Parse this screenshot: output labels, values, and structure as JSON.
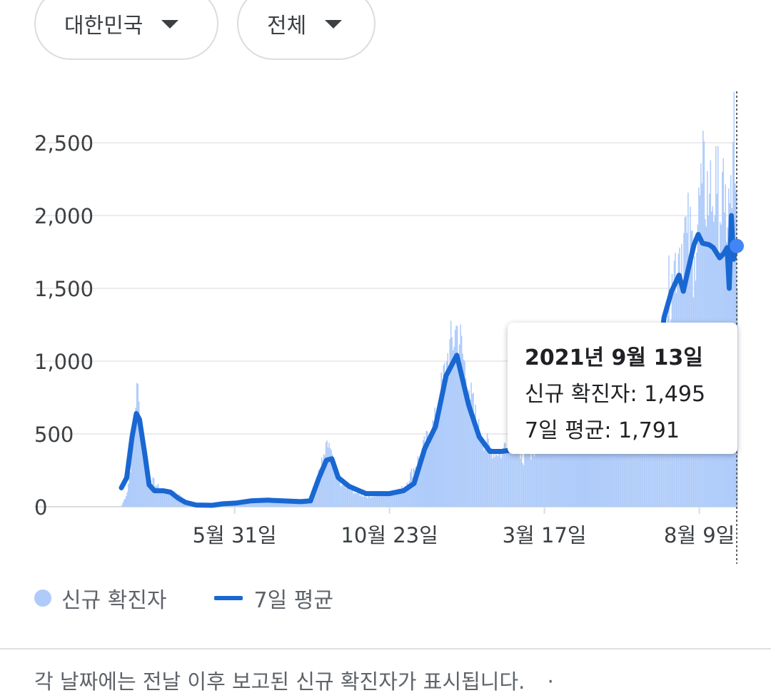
{
  "filters": {
    "country": "대한민국",
    "scope": "전체"
  },
  "chart_data": {
    "type": "bar",
    "ylim": [
      0,
      2850
    ],
    "yticks": [
      0,
      500,
      1000,
      1500,
      2000,
      2500
    ],
    "ytick_labels": [
      "0",
      "500",
      "1,000",
      "1,500",
      "2,000",
      "2,500"
    ],
    "xtick_labels": [
      "5월 31일",
      "10월 23일",
      "3월 17일",
      "8월 9일"
    ],
    "x_start": "2020-02-15",
    "x_end": "2021-09-13",
    "grid": true,
    "legend_position": "bottom-left",
    "series": [
      {
        "name": "신규 확진자",
        "kind": "bar",
        "color": "#aecbfa",
        "points": [
          [
            "2020-02-15",
            10
          ],
          [
            "2020-02-20",
            100
          ],
          [
            "2020-02-25",
            400
          ],
          [
            "2020-02-29",
            850
          ],
          [
            "2020-03-03",
            600
          ],
          [
            "2020-03-07",
            450
          ],
          [
            "2020-03-12",
            200
          ],
          [
            "2020-03-18",
            150
          ],
          [
            "2020-03-25",
            100
          ],
          [
            "2020-04-01",
            110
          ],
          [
            "2020-04-08",
            80
          ],
          [
            "2020-04-15",
            40
          ],
          [
            "2020-04-25",
            15
          ],
          [
            "2020-05-10",
            20
          ],
          [
            "2020-05-31",
            25
          ],
          [
            "2020-06-15",
            45
          ],
          [
            "2020-07-01",
            45
          ],
          [
            "2020-07-15",
            40
          ],
          [
            "2020-08-01",
            35
          ],
          [
            "2020-08-10",
            40
          ],
          [
            "2020-08-15",
            170
          ],
          [
            "2020-08-21",
            320
          ],
          [
            "2020-08-27",
            440
          ],
          [
            "2020-09-01",
            250
          ],
          [
            "2020-09-08",
            150
          ],
          [
            "2020-09-20",
            100
          ],
          [
            "2020-10-01",
            70
          ],
          [
            "2020-10-23",
            90
          ],
          [
            "2020-11-05",
            130
          ],
          [
            "2020-11-20",
            350
          ],
          [
            "2020-12-05",
            600
          ],
          [
            "2020-12-15",
            1000
          ],
          [
            "2020-12-25",
            1240
          ],
          [
            "2021-01-05",
            800
          ],
          [
            "2021-01-15",
            500
          ],
          [
            "2021-01-25",
            400
          ],
          [
            "2021-02-05",
            370
          ],
          [
            "2021-02-16",
            620
          ],
          [
            "2021-02-22",
            330
          ],
          [
            "2021-03-17",
            470
          ],
          [
            "2021-04-10",
            650
          ],
          [
            "2021-05-01",
            600
          ],
          [
            "2021-05-20",
            560
          ],
          [
            "2021-06-10",
            600
          ],
          [
            "2021-06-25",
            700
          ],
          [
            "2021-07-01",
            820
          ],
          [
            "2021-07-07",
            1280
          ],
          [
            "2021-07-14",
            1600
          ],
          [
            "2021-07-21",
            1780
          ],
          [
            "2021-07-28",
            1880
          ],
          [
            "2021-08-04",
            1720
          ],
          [
            "2021-08-11",
            2220
          ],
          [
            "2021-08-18",
            2150
          ],
          [
            "2021-08-25",
            2150
          ],
          [
            "2021-09-01",
            2020
          ],
          [
            "2021-09-08",
            2050
          ],
          [
            "2021-09-10",
            2850
          ],
          [
            "2021-09-13",
            1495
          ]
        ]
      },
      {
        "name": "7일 평균",
        "kind": "line",
        "color": "#1967d2",
        "points": [
          [
            "2020-02-15",
            130
          ],
          [
            "2020-02-20",
            200
          ],
          [
            "2020-02-25",
            480
          ],
          [
            "2020-02-29",
            640
          ],
          [
            "2020-03-03",
            600
          ],
          [
            "2020-03-08",
            360
          ],
          [
            "2020-03-12",
            150
          ],
          [
            "2020-03-17",
            110
          ],
          [
            "2020-03-25",
            110
          ],
          [
            "2020-04-01",
            100
          ],
          [
            "2020-04-08",
            60
          ],
          [
            "2020-04-15",
            30
          ],
          [
            "2020-04-25",
            12
          ],
          [
            "2020-05-10",
            10
          ],
          [
            "2020-05-20",
            20
          ],
          [
            "2020-06-01",
            25
          ],
          [
            "2020-06-15",
            40
          ],
          [
            "2020-07-01",
            45
          ],
          [
            "2020-07-15",
            40
          ],
          [
            "2020-08-01",
            35
          ],
          [
            "2020-08-10",
            40
          ],
          [
            "2020-08-18",
            200
          ],
          [
            "2020-08-25",
            320
          ],
          [
            "2020-08-30",
            330
          ],
          [
            "2020-09-05",
            200
          ],
          [
            "2020-09-15",
            140
          ],
          [
            "2020-10-01",
            90
          ],
          [
            "2020-10-23",
            90
          ],
          [
            "2020-11-05",
            110
          ],
          [
            "2020-11-15",
            160
          ],
          [
            "2020-11-25",
            400
          ],
          [
            "2020-12-05",
            550
          ],
          [
            "2020-12-15",
            900
          ],
          [
            "2020-12-25",
            1040
          ],
          [
            "2021-01-05",
            700
          ],
          [
            "2021-01-15",
            480
          ],
          [
            "2021-01-25",
            380
          ],
          [
            "2021-02-05",
            380
          ],
          [
            "2021-03-17",
            420
          ],
          [
            "2021-04-10",
            600
          ],
          [
            "2021-05-01",
            600
          ],
          [
            "2021-05-20",
            560
          ],
          [
            "2021-06-10",
            580
          ],
          [
            "2021-06-25",
            600
          ],
          [
            "2021-07-01",
            900
          ],
          [
            "2021-07-07",
            1300
          ],
          [
            "2021-07-14",
            1480
          ],
          [
            "2021-07-21",
            1590
          ],
          [
            "2021-07-25",
            1480
          ],
          [
            "2021-07-28",
            1580
          ],
          [
            "2021-08-04",
            1800
          ],
          [
            "2021-08-08",
            1870
          ],
          [
            "2021-08-12",
            1810
          ],
          [
            "2021-08-18",
            1800
          ],
          [
            "2021-08-22",
            1780
          ],
          [
            "2021-08-28",
            1710
          ],
          [
            "2021-09-01",
            1740
          ],
          [
            "2021-09-04",
            1780
          ],
          [
            "2021-09-06",
            1500
          ],
          [
            "2021-09-08",
            2000
          ],
          [
            "2021-09-10",
            1700
          ],
          [
            "2021-09-13",
            1791
          ]
        ]
      }
    ]
  },
  "tooltip": {
    "date": "2021년 9월 13일",
    "new_cases": "신규 확진자: 1,495",
    "avg": "7일 평균: 1,791"
  },
  "legend": {
    "bars": "신규 확진자",
    "line": "7일 평균"
  },
  "footnote": "각 날짜에는 전날 이후 보고된 신규 확진자가 표시됩니다.",
  "footnote_more": "·"
}
